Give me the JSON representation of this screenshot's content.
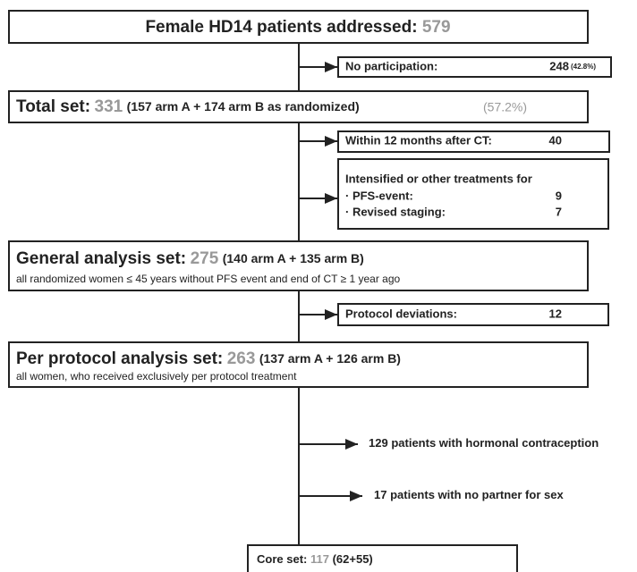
{
  "header": {
    "label": "Female HD14 patients addressed:",
    "value": 579
  },
  "exclusions": [
    {
      "label": "No participation:",
      "value": 248,
      "percent": "(42.8%)"
    },
    {
      "label": "Within 12 months after CT:",
      "value": 40
    },
    {
      "label": "Intensified or other treatments for",
      "items": [
        {
          "label": "· PFS-event:",
          "value": 9
        },
        {
          "label": "· Revised staging:",
          "value": 7
        }
      ]
    },
    {
      "label": "Protocol deviations:",
      "value": 12
    }
  ],
  "sets": [
    {
      "label": "Total set:",
      "value": 331,
      "detail": "(157 arm A + 174 arm B as randomized)",
      "percent": "(57.2%)"
    },
    {
      "label": "General analysis set:",
      "value": 275,
      "detail": "(140 arm A + 135 arm B)",
      "note": "all randomized women ≤ 45 years without PFS event and end of CT ≥ 1 year ago"
    },
    {
      "label": "Per protocol analysis set:",
      "value": 263,
      "detail": "(137 arm A + 126 arm B)",
      "note": "all women, who received exclusively per protocol treatment"
    }
  ],
  "subgroups": [
    {
      "value": 129,
      "label": "patients with hormonal contraception"
    },
    {
      "value": 17,
      "label": "patients with no partner for sex"
    }
  ],
  "core": {
    "label": "Core set:",
    "value": 117,
    "detail": "(62+55)"
  }
}
